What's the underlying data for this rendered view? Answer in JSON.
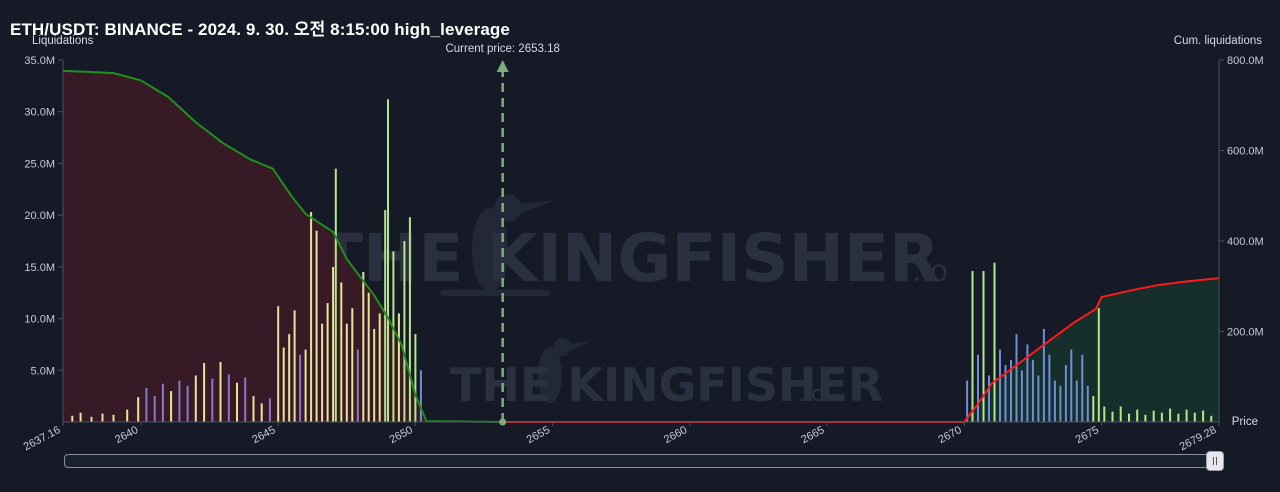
{
  "header": {
    "title": "ETH/USDT: BINANCE - 2024. 9. 30. 오전 8:15:00 high_leverage"
  },
  "watermark": {
    "brand": "THE KINGFISHER",
    "suffix": ".io"
  },
  "colors": {
    "background": "#161a27",
    "long_cum_line": "#1f8f1f",
    "short_cum_line": "#ff1a1a",
    "long_fill": "#3a1a26",
    "short_fill": "#16302a",
    "bar_yellow": "#e6e49a",
    "bar_purple": "#8a79c4",
    "bar_green": "#b4e68c",
    "bar_blue": "#6f8ed6",
    "current_price_line": "#7fae7a"
  },
  "chart_data": {
    "type": "bar",
    "title": "",
    "xlabel": "Price",
    "ylabel_left": "Liquidations",
    "ylabel_right": "Cum. liquidations",
    "x_range": [
      2637.16,
      2679.28
    ],
    "x_edge_labels": [
      "2637.16",
      "2679.28"
    ],
    "x_ticks": [
      "2640",
      "2645",
      "2650",
      "2655",
      "2660",
      "2665",
      "2670",
      "2675"
    ],
    "y_left_ticks": [
      "5.0M",
      "10.0M",
      "15.0M",
      "20.0M",
      "25.0M",
      "30.0M",
      "35.0M"
    ],
    "y_left_range": [
      0,
      35000000
    ],
    "y_right_ticks": [
      "200.0M",
      "400.0M",
      "600.0M",
      "800.0M"
    ],
    "y_right_range": [
      0,
      800000000
    ],
    "current_price": 2653.18,
    "current_price_label": "Current price: 2653.18",
    "long_liquidations": [
      {
        "price": 2637.5,
        "value": 0.6,
        "color": "yellow"
      },
      {
        "price": 2637.8,
        "value": 0.9,
        "color": "yellow"
      },
      {
        "price": 2638.2,
        "value": 0.5,
        "color": "yellow"
      },
      {
        "price": 2638.6,
        "value": 0.8,
        "color": "yellow"
      },
      {
        "price": 2639.0,
        "value": 0.7,
        "color": "yellow"
      },
      {
        "price": 2639.5,
        "value": 1.2,
        "color": "yellow"
      },
      {
        "price": 2639.9,
        "value": 2.4,
        "color": "yellow"
      },
      {
        "price": 2640.2,
        "value": 3.3,
        "color": "purple"
      },
      {
        "price": 2640.5,
        "value": 2.5,
        "color": "purple"
      },
      {
        "price": 2640.8,
        "value": 3.7,
        "color": "purple"
      },
      {
        "price": 2641.1,
        "value": 3.0,
        "color": "yellow"
      },
      {
        "price": 2641.4,
        "value": 4.0,
        "color": "purple"
      },
      {
        "price": 2641.7,
        "value": 3.5,
        "color": "purple"
      },
      {
        "price": 2642.0,
        "value": 4.5,
        "color": "yellow"
      },
      {
        "price": 2642.3,
        "value": 5.7,
        "color": "yellow"
      },
      {
        "price": 2642.6,
        "value": 4.2,
        "color": "purple"
      },
      {
        "price": 2642.9,
        "value": 5.8,
        "color": "yellow"
      },
      {
        "price": 2643.2,
        "value": 4.6,
        "color": "purple"
      },
      {
        "price": 2643.5,
        "value": 3.8,
        "color": "yellow"
      },
      {
        "price": 2643.8,
        "value": 4.3,
        "color": "purple"
      },
      {
        "price": 2644.1,
        "value": 2.5,
        "color": "yellow"
      },
      {
        "price": 2644.4,
        "value": 1.8,
        "color": "yellow"
      },
      {
        "price": 2644.7,
        "value": 2.3,
        "color": "purple"
      },
      {
        "price": 2645.0,
        "value": 11.2,
        "color": "yellow"
      },
      {
        "price": 2645.2,
        "value": 7.2,
        "color": "yellow"
      },
      {
        "price": 2645.4,
        "value": 8.5,
        "color": "yellow"
      },
      {
        "price": 2645.6,
        "value": 10.8,
        "color": "yellow"
      },
      {
        "price": 2645.8,
        "value": 6.5,
        "color": "purple"
      },
      {
        "price": 2646.0,
        "value": 7.0,
        "color": "yellow"
      },
      {
        "price": 2646.2,
        "value": 20.3,
        "color": "yellow"
      },
      {
        "price": 2646.4,
        "value": 18.5,
        "color": "yellow"
      },
      {
        "price": 2646.6,
        "value": 9.5,
        "color": "yellow"
      },
      {
        "price": 2646.8,
        "value": 11.5,
        "color": "yellow"
      },
      {
        "price": 2647.0,
        "value": 15.0,
        "color": "yellow"
      },
      {
        "price": 2647.1,
        "value": 24.5,
        "color": "green"
      },
      {
        "price": 2647.3,
        "value": 13.5,
        "color": "yellow"
      },
      {
        "price": 2647.5,
        "value": 9.5,
        "color": "yellow"
      },
      {
        "price": 2647.7,
        "value": 11.0,
        "color": "yellow"
      },
      {
        "price": 2647.9,
        "value": 7.0,
        "color": "purple"
      },
      {
        "price": 2648.1,
        "value": 14.5,
        "color": "yellow"
      },
      {
        "price": 2648.3,
        "value": 12.5,
        "color": "yellow"
      },
      {
        "price": 2648.5,
        "value": 9.0,
        "color": "yellow"
      },
      {
        "price": 2648.7,
        "value": 10.5,
        "color": "yellow"
      },
      {
        "price": 2648.9,
        "value": 20.5,
        "color": "green"
      },
      {
        "price": 2649.0,
        "value": 31.2,
        "color": "green"
      },
      {
        "price": 2649.2,
        "value": 16.5,
        "color": "green"
      },
      {
        "price": 2649.4,
        "value": 10.5,
        "color": "yellow"
      },
      {
        "price": 2649.6,
        "value": 17.5,
        "color": "green"
      },
      {
        "price": 2649.8,
        "value": 19.8,
        "color": "green"
      },
      {
        "price": 2650.0,
        "value": 8.5,
        "color": "green"
      },
      {
        "price": 2650.2,
        "value": 5.0,
        "color": "blue"
      }
    ],
    "short_liquidations": [
      {
        "price": 2670.1,
        "value": 4.0,
        "color": "blue"
      },
      {
        "price": 2670.3,
        "value": 14.6,
        "color": "green"
      },
      {
        "price": 2670.5,
        "value": 6.5,
        "color": "blue"
      },
      {
        "price": 2670.7,
        "value": 14.6,
        "color": "green"
      },
      {
        "price": 2670.9,
        "value": 4.5,
        "color": "blue"
      },
      {
        "price": 2671.1,
        "value": 15.4,
        "color": "green"
      },
      {
        "price": 2671.3,
        "value": 7.0,
        "color": "blue"
      },
      {
        "price": 2671.5,
        "value": 5.5,
        "color": "blue"
      },
      {
        "price": 2671.7,
        "value": 6.0,
        "color": "blue"
      },
      {
        "price": 2671.9,
        "value": 8.5,
        "color": "blue"
      },
      {
        "price": 2672.1,
        "value": 5.0,
        "color": "blue"
      },
      {
        "price": 2672.3,
        "value": 7.5,
        "color": "blue"
      },
      {
        "price": 2672.5,
        "value": 6.0,
        "color": "blue"
      },
      {
        "price": 2672.7,
        "value": 4.5,
        "color": "blue"
      },
      {
        "price": 2672.9,
        "value": 9.0,
        "color": "blue"
      },
      {
        "price": 2673.1,
        "value": 6.5,
        "color": "blue"
      },
      {
        "price": 2673.3,
        "value": 4.0,
        "color": "blue"
      },
      {
        "price": 2673.5,
        "value": 3.5,
        "color": "blue"
      },
      {
        "price": 2673.7,
        "value": 5.5,
        "color": "blue"
      },
      {
        "price": 2673.9,
        "value": 7.0,
        "color": "blue"
      },
      {
        "price": 2674.1,
        "value": 4.0,
        "color": "blue"
      },
      {
        "price": 2674.3,
        "value": 6.5,
        "color": "blue"
      },
      {
        "price": 2674.5,
        "value": 3.5,
        "color": "blue"
      },
      {
        "price": 2674.7,
        "value": 2.5,
        "color": "green"
      },
      {
        "price": 2674.9,
        "value": 11.0,
        "color": "green"
      },
      {
        "price": 2675.1,
        "value": 1.5,
        "color": "green"
      },
      {
        "price": 2675.4,
        "value": 1.0,
        "color": "green"
      },
      {
        "price": 2675.7,
        "value": 1.5,
        "color": "green"
      },
      {
        "price": 2676.0,
        "value": 0.8,
        "color": "green"
      },
      {
        "price": 2676.3,
        "value": 1.2,
        "color": "green"
      },
      {
        "price": 2676.6,
        "value": 0.7,
        "color": "green"
      },
      {
        "price": 2676.9,
        "value": 1.1,
        "color": "green"
      },
      {
        "price": 2677.2,
        "value": 0.9,
        "color": "green"
      },
      {
        "price": 2677.5,
        "value": 1.3,
        "color": "green"
      },
      {
        "price": 2677.8,
        "value": 0.8,
        "color": "green"
      },
      {
        "price": 2678.1,
        "value": 1.2,
        "color": "green"
      },
      {
        "price": 2678.4,
        "value": 0.9,
        "color": "green"
      },
      {
        "price": 2678.7,
        "value": 1.1,
        "color": "green"
      },
      {
        "price": 2679.0,
        "value": 0.6,
        "color": "green"
      }
    ],
    "long_cumulative": [
      [
        2637.16,
        776
      ],
      [
        2638.0,
        774
      ],
      [
        2639.0,
        771
      ],
      [
        2640.0,
        755
      ],
      [
        2641.0,
        718
      ],
      [
        2642.0,
        662
      ],
      [
        2643.0,
        616
      ],
      [
        2644.0,
        580
      ],
      [
        2644.8,
        560
      ],
      [
        2645.5,
        498
      ],
      [
        2646.0,
        460
      ],
      [
        2646.5,
        440
      ],
      [
        2647.0,
        420
      ],
      [
        2647.5,
        360
      ],
      [
        2648.0,
        320
      ],
      [
        2648.5,
        280
      ],
      [
        2649.0,
        230
      ],
      [
        2649.5,
        170
      ],
      [
        2650.0,
        60
      ],
      [
        2650.4,
        2
      ],
      [
        2653.18,
        0
      ]
    ],
    "short_cumulative": [
      [
        2653.18,
        0
      ],
      [
        2670.0,
        0
      ],
      [
        2670.5,
        40
      ],
      [
        2671.0,
        85
      ],
      [
        2672.0,
        130
      ],
      [
        2673.0,
        175
      ],
      [
        2674.0,
        220
      ],
      [
        2674.8,
        250
      ],
      [
        2675.0,
        276
      ],
      [
        2676.0,
        290
      ],
      [
        2677.0,
        302
      ],
      [
        2678.0,
        310
      ],
      [
        2679.28,
        318
      ]
    ]
  }
}
